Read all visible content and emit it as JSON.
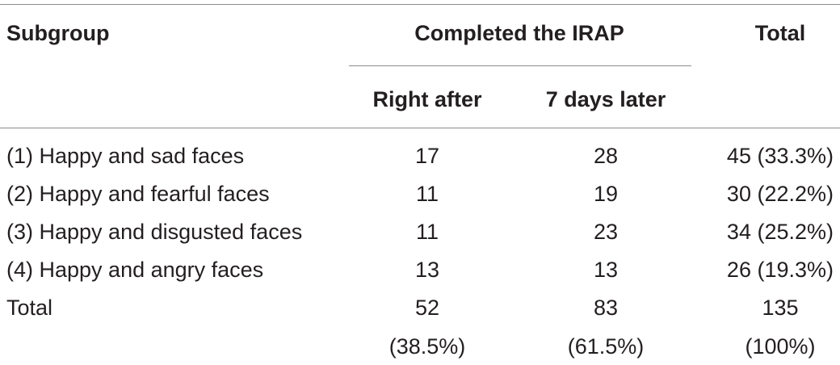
{
  "table": {
    "header": {
      "subgroup": "Subgroup",
      "group_label": "Completed the IRAP",
      "total": "Total",
      "col_right_after": "Right after",
      "col_7_days_later": "7 days later"
    },
    "rows": [
      {
        "subgroup": "(1) Happy and sad faces",
        "right_after": "17",
        "seven_days_later": "28",
        "total": "45 (33.3%)"
      },
      {
        "subgroup": "(2) Happy and fearful faces",
        "right_after": "11",
        "seven_days_later": "19",
        "total": "30 (22.2%)"
      },
      {
        "subgroup": "(3) Happy and disgusted faces",
        "right_after": "11",
        "seven_days_later": "23",
        "total": "34 (25.2%)"
      },
      {
        "subgroup": "(4) Happy and angry faces",
        "right_after": "13",
        "seven_days_later": "13",
        "total": "26 (19.3%)"
      },
      {
        "subgroup": "Total",
        "right_after": "52",
        "seven_days_later": "83",
        "total": "135"
      }
    ],
    "percent_row": {
      "right_after": "(38.5%)",
      "seven_days_later": "(61.5%)",
      "total": "(100%)"
    }
  }
}
